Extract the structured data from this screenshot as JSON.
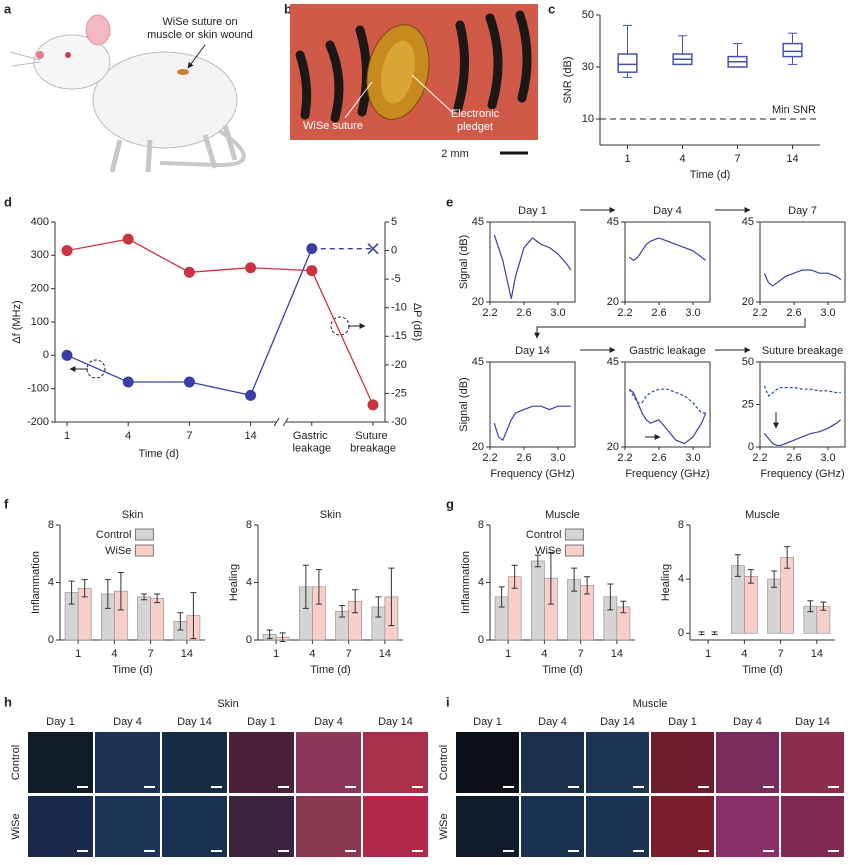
{
  "panel_labels": [
    "a",
    "b",
    "c",
    "d",
    "e",
    "f",
    "g",
    "h",
    "i"
  ],
  "illustration": {
    "label": [
      "WiSe suture on",
      "muscle or skin wound"
    ]
  },
  "photo": {
    "suture_label": "WiSe suture",
    "pledget_label": [
      "Electronic",
      "pledget"
    ],
    "scale_bar": "2 mm"
  },
  "micrographs": [
    {
      "title": "Skin",
      "columns": [
        "Day 1",
        "Day 4",
        "Day 14",
        "Day 1",
        "Day 4",
        "Day 14"
      ],
      "rows": [
        "Control",
        "WiSe"
      ]
    },
    {
      "title": "Muscle",
      "columns": [
        "Day 1",
        "Day 4",
        "Day 14",
        "Day 1",
        "Day 4",
        "Day 14"
      ],
      "rows": [
        "Control",
        "WiSe"
      ]
    }
  ],
  "chart_data": [
    {
      "type": "box",
      "categories": [
        "1",
        "4",
        "7",
        "14"
      ],
      "stats": [
        {
          "min": 26,
          "q1": 28,
          "median": 31,
          "q3": 35,
          "max": 46
        },
        {
          "min": 31,
          "q1": 31,
          "median": 33,
          "q3": 35,
          "max": 42
        },
        {
          "min": 30,
          "q1": 30,
          "median": 32,
          "q3": 34,
          "max": 39
        },
        {
          "min": 31,
          "q1": 34,
          "median": 36,
          "q3": 39,
          "max": 43
        }
      ],
      "color": "#4750b0",
      "ylim": [
        0,
        50
      ],
      "yticks": [
        10,
        30,
        50
      ],
      "xlabel": "Time (d)",
      "ylabel": "SNR (dB)",
      "reference": {
        "value": 10,
        "label": "Min SNR"
      }
    },
    {
      "type": "line",
      "categories": [
        "1",
        "4",
        "7",
        "14",
        "Gastric leakage",
        "Suture breakage"
      ],
      "xlabel": "Time (d)",
      "ylabel": "Δf (MHz)",
      "y2label": "ΔP (dB)",
      "ylim": [
        -200,
        400
      ],
      "yticks": [
        -200,
        -100,
        0,
        100,
        200,
        300,
        400
      ],
      "y2lim": [
        -30,
        5
      ],
      "y2ticks": [
        -30,
        -25,
        -20,
        -15,
        -10,
        -5,
        0,
        5
      ],
      "series": [
        {
          "color": "#3a3fa8",
          "values": [
            0,
            -80,
            -80,
            -120,
            320,
            320
          ],
          "dashed_last_segment": true
        },
        {
          "color": "#c8343f",
          "axis": "y2",
          "values": [
            0,
            2,
            -3.8,
            -3,
            -3.5,
            -27
          ]
        }
      ]
    },
    {
      "type": "line",
      "title": "Day 1",
      "x": [
        2.25,
        2.3,
        2.35,
        2.4,
        2.45,
        2.5,
        2.6,
        2.7,
        2.8,
        2.9,
        3.0,
        3.1,
        3.15
      ],
      "xlim": [
        2.2,
        3.2
      ],
      "xticks": [
        2.2,
        2.6,
        {
          "value": 3,
          "label": "3.0"
        }
      ],
      "ylim": [
        20,
        45
      ],
      "yticks": [
        20,
        45
      ],
      "ylabel": "Signal (dB)",
      "series": [
        {
          "color": "#3b3fa3",
          "values": [
            41,
            37,
            33,
            27,
            21,
            28,
            37,
            40,
            38,
            37,
            35,
            32,
            30
          ]
        }
      ]
    },
    {
      "type": "line",
      "title": "Day 4",
      "x": [
        2.25,
        2.3,
        2.35,
        2.4,
        2.45,
        2.5,
        2.6,
        2.7,
        2.8,
        2.9,
        3.0,
        3.1,
        3.15
      ],
      "xlim": [
        2.2,
        3.2
      ],
      "xticks": [
        2.2,
        2.6,
        {
          "value": 3,
          "label": "3.0"
        }
      ],
      "ylim": [
        20,
        45
      ],
      "yticks": [
        20,
        45
      ],
      "series": [
        {
          "color": "#3b3fa3",
          "values": [
            34,
            33,
            34,
            36,
            38,
            39,
            40,
            39,
            38,
            37,
            36,
            34,
            33
          ]
        }
      ]
    },
    {
      "type": "line",
      "title": "Day 7",
      "x": [
        2.25,
        2.3,
        2.35,
        2.4,
        2.45,
        2.5,
        2.6,
        2.7,
        2.8,
        2.9,
        3.0,
        3.1,
        3.15
      ],
      "xlim": [
        2.2,
        3.2
      ],
      "xticks": [
        2.2,
        2.6,
        {
          "value": 3,
          "label": "3.0"
        }
      ],
      "ylim": [
        20,
        45
      ],
      "yticks": [
        20,
        45
      ],
      "series": [
        {
          "color": "#3b3fa3",
          "values": [
            29,
            26,
            25,
            26,
            27,
            28,
            29,
            30,
            30,
            29,
            29,
            28,
            27
          ]
        }
      ]
    },
    {
      "type": "line",
      "title": "Day 14",
      "x": [
        2.25,
        2.3,
        2.35,
        2.4,
        2.45,
        2.5,
        2.6,
        2.7,
        2.8,
        2.9,
        3.0,
        3.1,
        3.15
      ],
      "xlim": [
        2.2,
        3.2
      ],
      "xticks": [
        2.2,
        2.6,
        {
          "value": 3,
          "label": "3.0"
        }
      ],
      "ylim": [
        20,
        45
      ],
      "yticks": [
        20,
        45
      ],
      "ylabel": "Signal (dB)",
      "xlabel": "Frequency (GHz)",
      "series": [
        {
          "color": "#3b3fa3",
          "values": [
            27,
            23,
            22,
            25,
            28,
            30,
            31,
            32,
            32,
            31,
            32,
            32,
            32
          ]
        }
      ]
    },
    {
      "type": "line",
      "title": "Gastric leakage",
      "x": [
        2.25,
        2.3,
        2.35,
        2.4,
        2.45,
        2.5,
        2.6,
        2.7,
        2.8,
        2.9,
        3.0,
        3.1,
        3.15
      ],
      "xlim": [
        2.2,
        3.2
      ],
      "xticks": [
        2.2,
        2.6,
        {
          "value": 3,
          "label": "3.0"
        }
      ],
      "ylim": [
        20,
        45
      ],
      "yticks": [
        20,
        45
      ],
      "xlabel": "Frequency (GHz)",
      "series": [
        {
          "color": "#2a4fa0",
          "dashed": true,
          "values": [
            37,
            35,
            33,
            33,
            35,
            36,
            37,
            37,
            36,
            35,
            33,
            30,
            30
          ]
        },
        {
          "color": "#3b3fa3",
          "values": [
            37,
            36,
            33,
            30,
            28,
            27,
            28,
            25,
            22,
            21,
            23,
            27,
            30
          ]
        }
      ]
    },
    {
      "type": "line",
      "title": "Suture breakage",
      "x": [
        2.25,
        2.3,
        2.35,
        2.4,
        2.45,
        2.5,
        2.6,
        2.7,
        2.8,
        2.9,
        3.0,
        3.1,
        3.15
      ],
      "xlim": [
        2.2,
        3.2
      ],
      "xticks": [
        2.2,
        2.6,
        {
          "value": 3,
          "label": "3.0"
        }
      ],
      "ylim": [
        0,
        50
      ],
      "yticks": [
        0,
        25,
        50
      ],
      "xlabel": "Frequency (GHz)",
      "series": [
        {
          "color": "#2a4fa0",
          "dashed": true,
          "values": [
            36,
            30,
            32,
            34,
            35,
            35,
            35,
            34,
            34,
            33,
            33,
            32,
            32
          ]
        },
        {
          "color": "#3b3fa3",
          "values": [
            8,
            5,
            2,
            1,
            1,
            2,
            4,
            6,
            8,
            9,
            11,
            14,
            16
          ]
        }
      ]
    },
    {
      "type": "bar",
      "title": "Skin",
      "categories": [
        "1",
        "4",
        "7",
        "14"
      ],
      "xlabel": "Time (d)",
      "ylabel": "Inflammation",
      "ylim": [
        0,
        8
      ],
      "yticks": [
        0,
        4,
        8
      ],
      "legend": "top",
      "series": [
        {
          "name": "Control",
          "color": "#d4d4d4",
          "values": [
            3.3,
            3.2,
            3.0,
            1.3
          ],
          "errors": [
            0.8,
            1.0,
            0.2,
            0.6
          ]
        },
        {
          "name": "WiSe",
          "color": "#f7cfc8",
          "values": [
            3.6,
            3.4,
            2.9,
            1.7
          ],
          "errors": [
            0.6,
            1.3,
            0.3,
            1.6
          ]
        }
      ]
    },
    {
      "type": "bar",
      "title": "Skin",
      "categories": [
        "1",
        "4",
        "7",
        "14"
      ],
      "xlabel": "Time (d)",
      "ylabel": "Healing",
      "ylim": [
        0,
        8
      ],
      "yticks": [
        0,
        4,
        8
      ],
      "series": [
        {
          "color": "#d4d4d4",
          "values": [
            0.4,
            3.7,
            2.0,
            2.3
          ],
          "errors": [
            0.3,
            1.5,
            0.4,
            0.7
          ]
        },
        {
          "color": "#f7cfc8",
          "values": [
            0.2,
            3.7,
            2.7,
            3.0
          ],
          "errors": [
            0.3,
            1.2,
            0.8,
            2.0
          ]
        }
      ]
    },
    {
      "type": "bar",
      "title": "Muscle",
      "categories": [
        "1",
        "4",
        "7",
        "14"
      ],
      "xlabel": "Time (d)",
      "ylabel": "Inflammation",
      "ylim": [
        0,
        8
      ],
      "yticks": [
        0,
        4,
        8
      ],
      "legend": "top",
      "series": [
        {
          "name": "Control",
          "color": "#d4d4d4",
          "values": [
            3.0,
            5.5,
            4.2,
            3.0
          ],
          "errors": [
            0.7,
            0.4,
            0.8,
            0.9
          ]
        },
        {
          "name": "WiSe",
          "color": "#f7cfc8",
          "values": [
            4.4,
            4.3,
            3.8,
            2.3
          ],
          "errors": [
            0.8,
            1.8,
            0.6,
            0.4
          ]
        }
      ]
    },
    {
      "type": "bar",
      "title": "Muscle",
      "categories": [
        "1",
        "4",
        "7",
        "14"
      ],
      "xlabel": "Time (d)",
      "ylabel": "Healing",
      "ylim": [
        -0.5,
        8
      ],
      "yticks": [
        0,
        4,
        8
      ],
      "series": [
        {
          "color": "#d4d4d4",
          "values": [
            0,
            5.0,
            4.0,
            2.0
          ],
          "errors": [
            0.1,
            0.8,
            0.6,
            0.4
          ]
        },
        {
          "color": "#f7cfc8",
          "values": [
            0,
            4.2,
            5.6,
            2.0
          ],
          "errors": [
            0.1,
            0.5,
            0.8,
            0.3
          ]
        }
      ]
    }
  ]
}
